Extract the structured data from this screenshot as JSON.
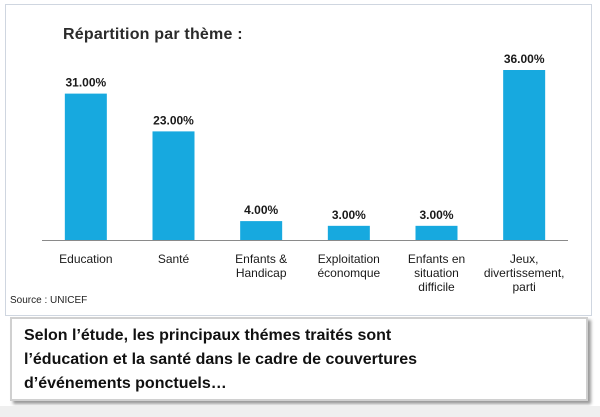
{
  "chart_data": {
    "type": "bar",
    "title": "Répartition par thème :",
    "categories": [
      [
        "Education"
      ],
      [
        "Santé"
      ],
      [
        "Enfants &",
        "Handicap"
      ],
      [
        "Exploitation",
        "économque"
      ],
      [
        "Enfants en",
        "situation",
        "difficile"
      ],
      [
        "Jeux,",
        "divertissement,",
        "parti"
      ]
    ],
    "values": [
      31,
      23,
      4,
      3,
      3,
      36
    ],
    "value_labels": [
      "31.00%",
      "23.00%",
      "4.00%",
      "3.00%",
      "3.00%",
      "36.00%"
    ],
    "ylim": [
      0,
      36
    ],
    "grid": false,
    "bar_color": "#17a9df"
  },
  "source": "Source : UNICEF",
  "caption": [
    "Selon l’étude, les principaux thémes traités sont",
    "l’éducation et la santé dans le cadre de couvertures",
    "d’événements ponctuels…"
  ]
}
